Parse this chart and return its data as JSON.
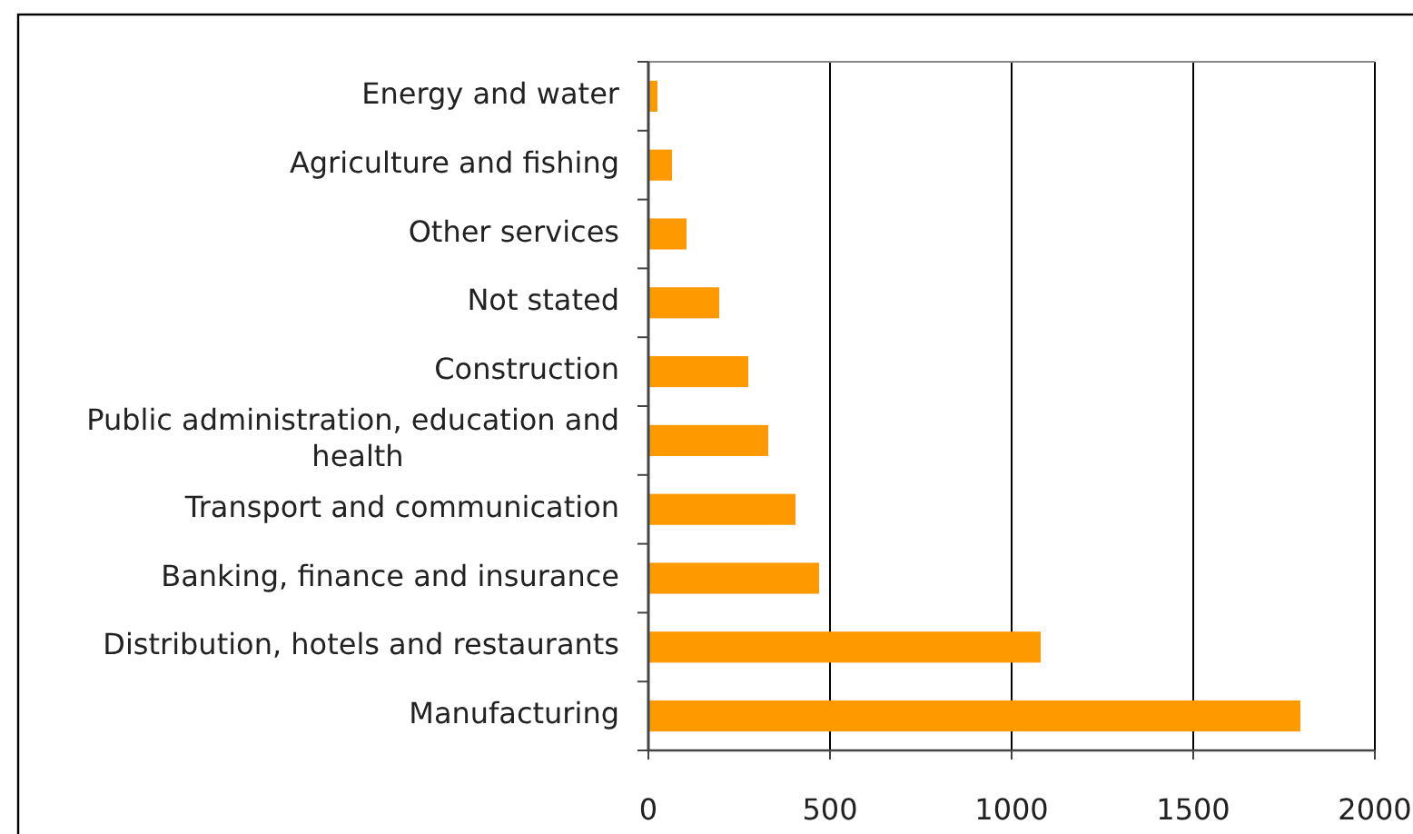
{
  "chart_data": {
    "type": "bar",
    "orientation": "horizontal",
    "categories": [
      "Energy and water",
      "Agriculture and fishing",
      "Other services",
      "Not stated",
      "Construction",
      "Public administration, education and health",
      "Transport and communication",
      "Banking, finance and insurance",
      "Distribution, hotels and restaurants",
      "Manufacturing"
    ],
    "values": [
      25,
      65,
      105,
      195,
      275,
      330,
      405,
      470,
      1080,
      1795
    ],
    "color": "#ff9900",
    "xlim": [
      0,
      2000
    ],
    "xticks": [
      0,
      500,
      1000,
      1500,
      2000
    ],
    "grid": "x"
  }
}
